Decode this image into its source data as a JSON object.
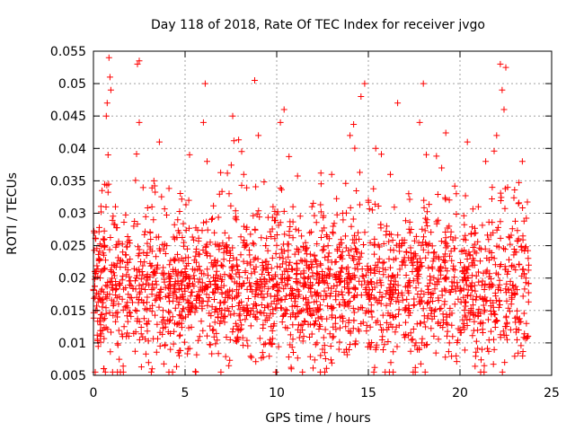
{
  "chart_data": {
    "type": "scatter",
    "title": "Day 118 of 2018, Rate Of TEC Index for receiver jvgo",
    "xlabel": "GPS time / hours",
    "ylabel": "ROTI / TECUs",
    "xlim": [
      0,
      25
    ],
    "ylim": [
      0.005,
      0.055
    ],
    "grid": true,
    "marker": "+",
    "marker_color": "#ff0000",
    "x_ticks": [
      0,
      5,
      10,
      15,
      20,
      25
    ],
    "x_tick_labels": [
      "0",
      "5",
      "10",
      "15",
      "20",
      "25"
    ],
    "y_ticks": [
      0.005,
      0.01,
      0.015,
      0.02,
      0.025,
      0.03,
      0.035,
      0.04,
      0.045,
      0.05,
      0.055
    ],
    "y_tick_labels": [
      "0.005",
      "0.01",
      "0.015",
      "0.02",
      "0.025",
      "0.03",
      "0.035",
      "0.04",
      "0.045",
      "0.05",
      "0.055"
    ],
    "x_range_of_data": [
      0,
      23.75
    ],
    "series": [
      {
        "name": "ROTI",
        "points": [
          [
            0.05,
            0.027
          ],
          [
            0.1,
            0.021
          ],
          [
            0.2,
            0.015
          ],
          [
            0.3,
            0.023
          ],
          [
            0.4,
            0.018
          ],
          [
            0.5,
            0.012
          ],
          [
            0.6,
            0.026
          ],
          [
            0.7,
            0.045
          ],
          [
            0.75,
            0.047
          ],
          [
            0.8,
            0.039
          ],
          [
            0.85,
            0.054
          ],
          [
            0.9,
            0.051
          ],
          [
            0.95,
            0.049
          ],
          [
            1.0,
            0.022
          ],
          [
            1.1,
            0.016
          ],
          [
            1.2,
            0.031
          ],
          [
            1.3,
            0.014
          ],
          [
            1.4,
            0.019
          ],
          [
            1.6,
            0.024
          ],
          [
            1.8,
            0.011
          ],
          [
            2.0,
            0.017
          ],
          [
            2.2,
            0.028
          ],
          [
            2.4,
            0.053
          ],
          [
            2.5,
            0.0535
          ],
          [
            2.5,
            0.044
          ],
          [
            2.7,
            0.019
          ],
          [
            2.9,
            0.013
          ],
          [
            3.1,
            0.027
          ],
          [
            3.2,
            0.006
          ],
          [
            3.3,
            0.035
          ],
          [
            3.5,
            0.022
          ],
          [
            3.6,
            0.041
          ],
          [
            3.8,
            0.015
          ],
          [
            4.0,
            0.025
          ],
          [
            4.2,
            0.009
          ],
          [
            4.4,
            0.018
          ],
          [
            4.6,
            0.029
          ],
          [
            4.8,
            0.013
          ],
          [
            5.0,
            0.021
          ],
          [
            5.2,
            0.032
          ],
          [
            5.4,
            0.016
          ],
          [
            5.6,
            0.024
          ],
          [
            5.8,
            0.011
          ],
          [
            6.0,
            0.044
          ],
          [
            6.1,
            0.05
          ],
          [
            6.2,
            0.038
          ],
          [
            6.4,
            0.019
          ],
          [
            6.6,
            0.027
          ],
          [
            6.8,
            0.014
          ],
          [
            7.0,
            0.022
          ],
          [
            7.2,
            0.017
          ],
          [
            7.4,
            0.033
          ],
          [
            7.6,
            0.045
          ],
          [
            7.8,
            0.029
          ],
          [
            8.0,
            0.012
          ],
          [
            8.2,
            0.036
          ],
          [
            8.4,
            0.02
          ],
          [
            8.6,
            0.015
          ],
          [
            8.8,
            0.0505
          ],
          [
            9.0,
            0.042
          ],
          [
            9.2,
            0.018
          ],
          [
            9.4,
            0.025
          ],
          [
            9.6,
            0.01
          ],
          [
            9.8,
            0.031
          ],
          [
            10.0,
            0.016
          ],
          [
            10.2,
            0.044
          ],
          [
            10.4,
            0.046
          ],
          [
            10.6,
            0.021
          ],
          [
            10.8,
            0.006
          ],
          [
            11.0,
            0.014
          ],
          [
            11.2,
            0.024
          ],
          [
            11.4,
            0.012
          ],
          [
            11.6,
            0.019
          ],
          [
            11.8,
            0.027
          ],
          [
            12.0,
            0.015
          ],
          [
            12.2,
            0.01
          ],
          [
            12.4,
            0.022
          ],
          [
            12.6,
            0.018
          ],
          [
            12.8,
            0.025
          ],
          [
            13.0,
            0.036
          ],
          [
            13.2,
            0.013
          ],
          [
            13.4,
            0.02
          ],
          [
            13.6,
            0.03
          ],
          [
            13.8,
            0.009
          ],
          [
            14.0,
            0.042
          ],
          [
            14.2,
            0.017
          ],
          [
            14.4,
            0.024
          ],
          [
            14.6,
            0.048
          ],
          [
            14.8,
            0.05
          ],
          [
            15.0,
            0.032
          ],
          [
            15.2,
            0.014
          ],
          [
            15.4,
            0.04
          ],
          [
            15.6,
            0.021
          ],
          [
            15.8,
            0.012
          ],
          [
            16.0,
            0.028
          ],
          [
            16.2,
            0.036
          ],
          [
            16.4,
            0.019
          ],
          [
            16.6,
            0.047
          ],
          [
            16.8,
            0.025
          ],
          [
            17.0,
            0.015
          ],
          [
            17.2,
            0.033
          ],
          [
            17.4,
            0.021
          ],
          [
            17.6,
            0.01
          ],
          [
            17.8,
            0.044
          ],
          [
            18.0,
            0.05
          ],
          [
            18.2,
            0.029
          ],
          [
            18.4,
            0.017
          ],
          [
            18.6,
            0.024
          ],
          [
            18.8,
            0.013
          ],
          [
            19.0,
            0.037
          ],
          [
            19.2,
            0.02
          ],
          [
            19.4,
            0.028
          ],
          [
            19.6,
            0.011
          ],
          [
            19.8,
            0.033
          ],
          [
            20.0,
            0.018
          ],
          [
            20.2,
            0.026
          ],
          [
            20.4,
            0.041
          ],
          [
            20.6,
            0.015
          ],
          [
            20.8,
            0.022
          ],
          [
            21.0,
            0.031
          ],
          [
            21.2,
            0.009
          ],
          [
            21.4,
            0.038
          ],
          [
            21.6,
            0.019
          ],
          [
            21.8,
            0.027
          ],
          [
            22.0,
            0.042
          ],
          [
            22.2,
            0.053
          ],
          [
            22.3,
            0.049
          ],
          [
            22.4,
            0.046
          ],
          [
            22.5,
            0.0525
          ],
          [
            22.6,
            0.034
          ],
          [
            22.8,
            0.016
          ],
          [
            23.0,
            0.024
          ],
          [
            23.2,
            0.012
          ],
          [
            23.4,
            0.038
          ],
          [
            23.6,
            0.02
          ],
          [
            23.7,
            0.011
          ]
        ],
        "cloud": {
          "count": 2200,
          "typical_range": [
            0.008,
            0.03
          ],
          "center": 0.018,
          "description_of_density": "dense over full x range 0 to 23.75 hours"
        }
      }
    ]
  }
}
